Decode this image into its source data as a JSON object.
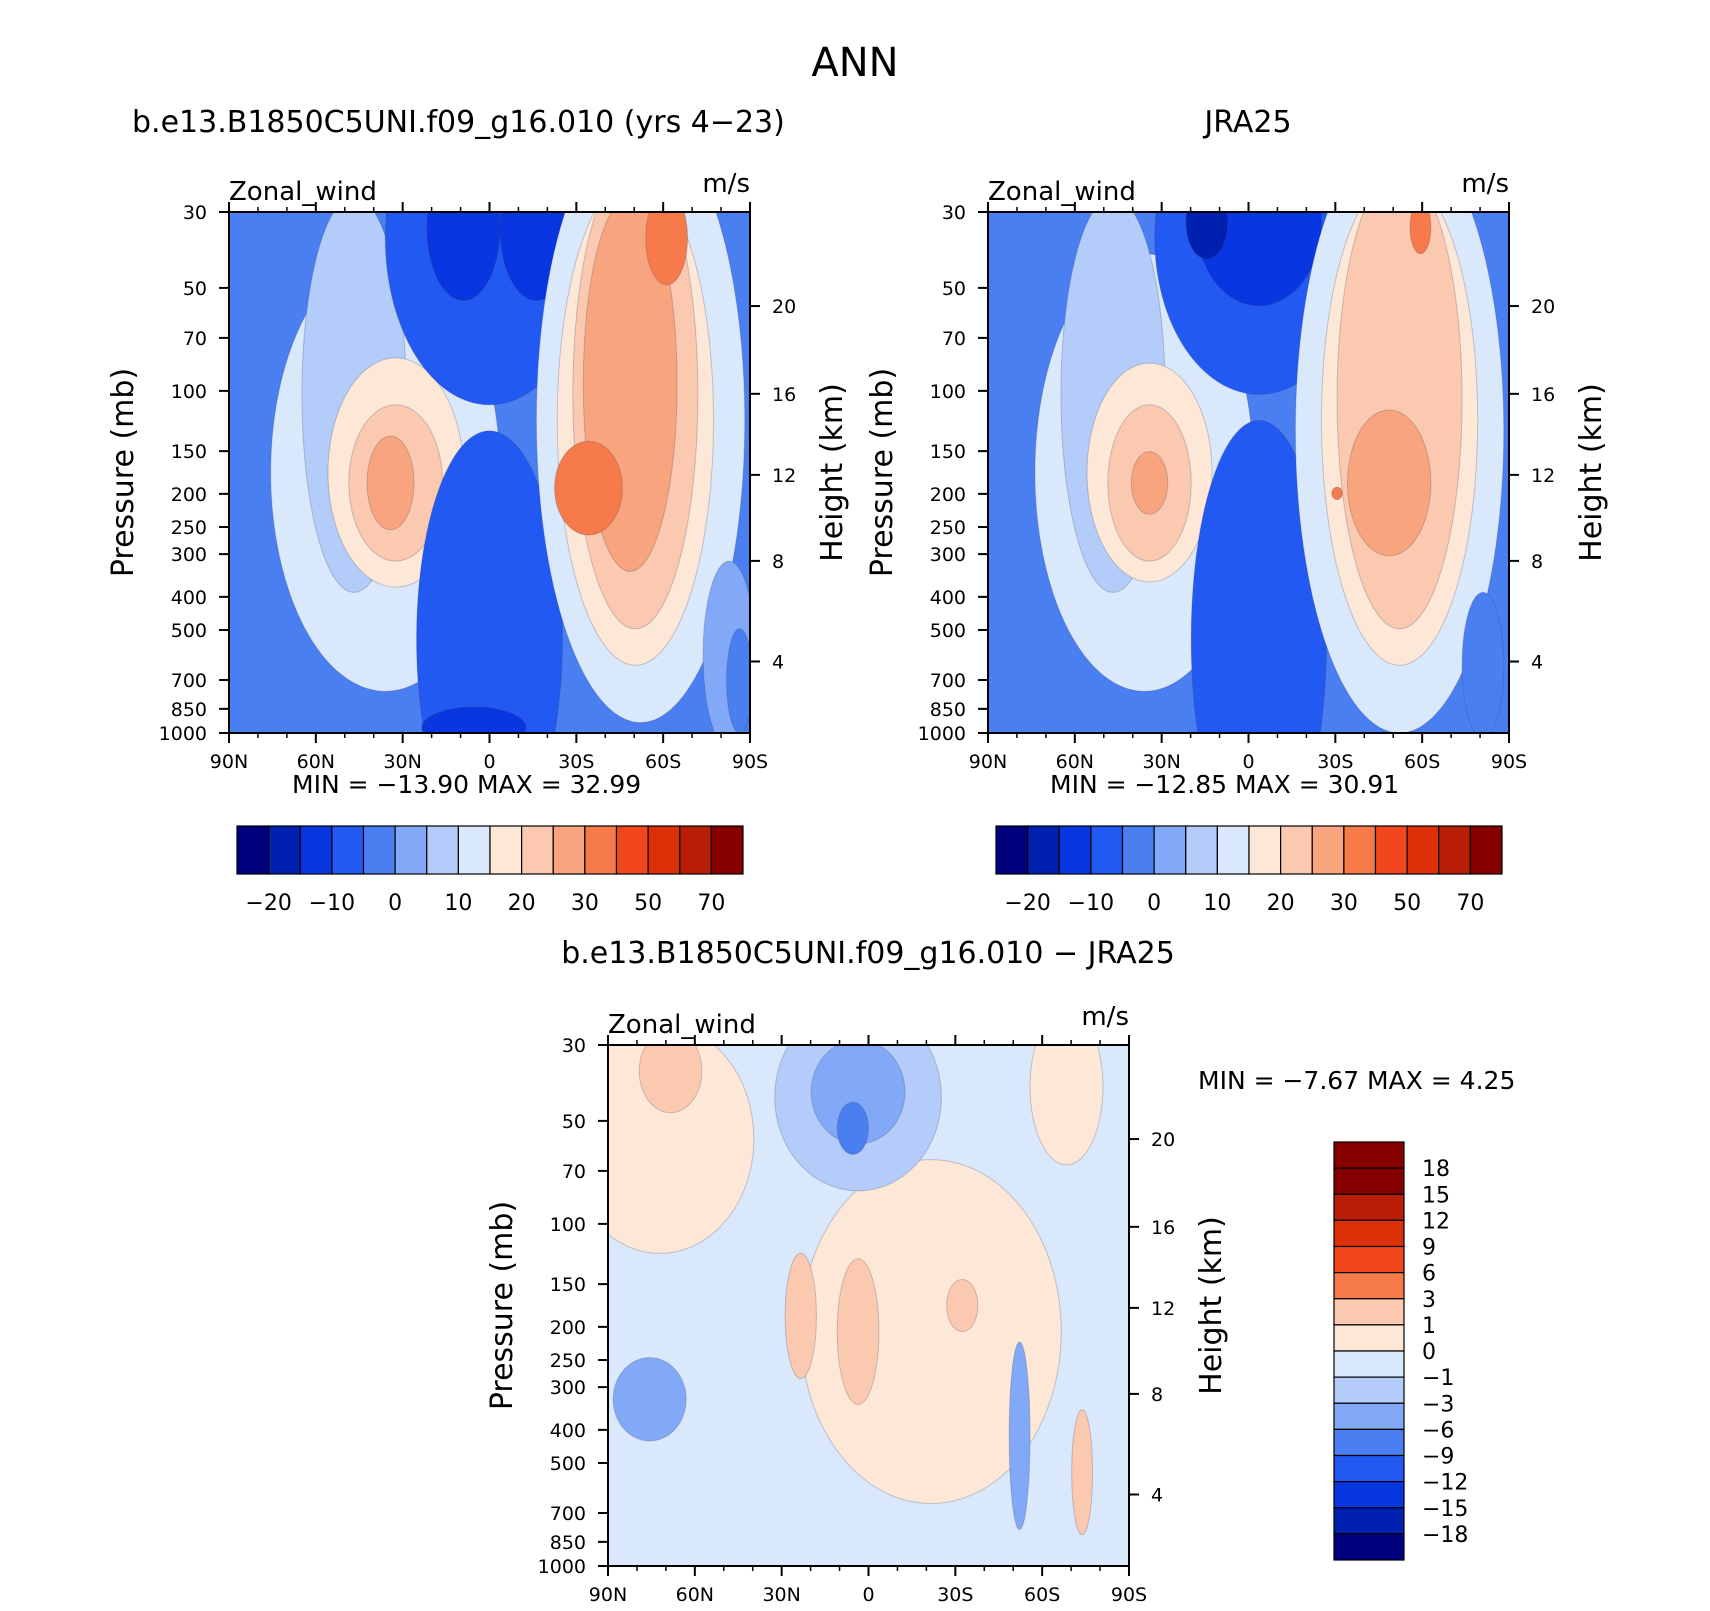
{
  "figure": {
    "title": "ANN"
  },
  "chart_data": [
    {
      "type": "heatmap",
      "title": "b.e13.B1850C5UNI.f09_g16.010 (yrs 4-23)",
      "left_label": "Zonal_wind",
      "right_label": "m/s",
      "ylabel": "Pressure (mb)",
      "ylabel_right": "Height (km)",
      "x_ticks": [
        "90N",
        "60N",
        "30N",
        "0",
        "30S",
        "60S",
        "90S"
      ],
      "y_ticks": [
        "30",
        "50",
        "70",
        "100",
        "150",
        "200",
        "250",
        "300",
        "400",
        "500",
        "700",
        "850",
        "1000"
      ],
      "y_ticks_right": [
        "20",
        "16",
        "12",
        "8",
        "4"
      ],
      "x_range": [
        90,
        -90
      ],
      "y_range": [
        30,
        1000
      ],
      "stats": {
        "min_label": "MIN =",
        "min": "-13.90",
        "max_label": "MAX =",
        "max": "32.99"
      },
      "colorbar": {
        "orientation": "horizontal",
        "labels": [
          "-20",
          "-10",
          "0",
          "10",
          "20",
          "30",
          "50",
          "70"
        ],
        "colors": [
          "#00007f",
          "#0020b0",
          "#0836e0",
          "#2159f2",
          "#4a7ff2",
          "#82a9f7",
          "#b4ccf9",
          "#d9e8fb",
          "#fde8d8",
          "#fbc9b0",
          "#f8a47f",
          "#f67a4a",
          "#f2471c",
          "#dc3009",
          "#b81e05",
          "#860000"
        ]
      }
    },
    {
      "type": "heatmap",
      "title": "JRA25",
      "left_label": "Zonal_wind",
      "right_label": "m/s",
      "ylabel": "Pressure (mb)",
      "ylabel_right": "Height (km)",
      "x_ticks": [
        "90N",
        "60N",
        "30N",
        "0",
        "30S",
        "60S",
        "90S"
      ],
      "y_ticks": [
        "30",
        "50",
        "70",
        "100",
        "150",
        "200",
        "250",
        "300",
        "400",
        "500",
        "700",
        "850",
        "1000"
      ],
      "y_ticks_right": [
        "20",
        "16",
        "12",
        "8",
        "4"
      ],
      "x_range": [
        90,
        -90
      ],
      "y_range": [
        30,
        1000
      ],
      "stats": {
        "min_label": "MIN =",
        "min": "-12.85",
        "max_label": "MAX =",
        "max": "30.91"
      },
      "colorbar": {
        "orientation": "horizontal",
        "labels": [
          "-20",
          "-10",
          "0",
          "10",
          "20",
          "30",
          "50",
          "70"
        ],
        "colors": [
          "#00007f",
          "#0020b0",
          "#0836e0",
          "#2159f2",
          "#4a7ff2",
          "#82a9f7",
          "#b4ccf9",
          "#d9e8fb",
          "#fde8d8",
          "#fbc9b0",
          "#f8a47f",
          "#f67a4a",
          "#f2471c",
          "#dc3009",
          "#b81e05",
          "#860000"
        ]
      }
    },
    {
      "type": "heatmap",
      "title": "b.e13.B1850C5UNI.f09_g16.010 - JRA25",
      "left_label": "Zonal_wind",
      "right_label": "m/s",
      "ylabel": "Pressure (mb)",
      "ylabel_right": "Height (km)",
      "x_ticks": [
        "90N",
        "60N",
        "30N",
        "0",
        "30S",
        "60S",
        "90S"
      ],
      "y_ticks": [
        "30",
        "50",
        "70",
        "100",
        "150",
        "200",
        "250",
        "300",
        "400",
        "500",
        "700",
        "850",
        "1000"
      ],
      "y_ticks_right": [
        "20",
        "16",
        "12",
        "8",
        "4"
      ],
      "x_range": [
        90,
        -90
      ],
      "y_range": [
        30,
        1000
      ],
      "stats": {
        "min_label": "MIN =",
        "min": "-7.67",
        "max_label": "MAX =",
        "max": "4.25"
      },
      "colorbar": {
        "orientation": "vertical",
        "labels": [
          "18",
          "15",
          "12",
          "9",
          "6",
          "3",
          "1",
          "0",
          "-1",
          "-3",
          "-6",
          "-9",
          "-12",
          "-15",
          "-18"
        ],
        "colors": [
          "#860000",
          "#b81e05",
          "#dc3009",
          "#f2471c",
          "#f67a4a",
          "#fbc9b0",
          "#fde8d8",
          "#d9e8fb",
          "#b4ccf9",
          "#82a9f7",
          "#4a7ff2",
          "#2159f2",
          "#0836e0",
          "#0020b0",
          "#00007f"
        ]
      }
    }
  ]
}
